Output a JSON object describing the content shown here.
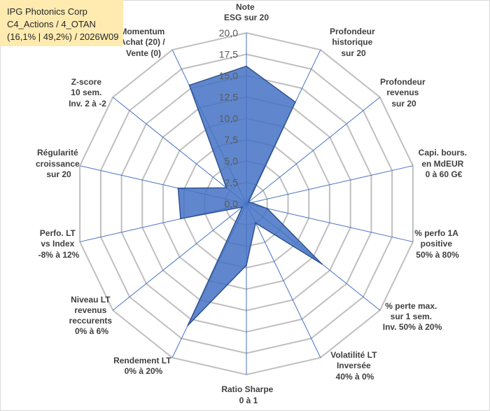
{
  "header": {
    "lines": [
      "IPG Photonics Corp",
      "C4_Actions / 4_OTAN",
      "(16,1% | 49,2%) / 2026W09"
    ]
  },
  "chart_data": {
    "type": "radar",
    "r_range": [
      0,
      20
    ],
    "tick_step": 2.5,
    "tick_labels": [
      "0,0",
      "2,5",
      "5,0",
      "7,5",
      "10,0",
      "12,5",
      "15,0",
      "17,5",
      "20,0"
    ],
    "grid": true,
    "categories": [
      [
        "Note",
        "ESG sur 20"
      ],
      [
        "Profondeur",
        "historique",
        "sur 20"
      ],
      [
        "Profondeur",
        "revenus",
        "sur 20"
      ],
      [
        "Capi. bours.",
        "en MdEUR",
        "0 à 60 G€"
      ],
      [
        "% perfo 1A",
        "positive",
        "50% à 80%"
      ],
      [
        "% perte max.",
        "sur 1 sem.",
        "Inv. 50% à 20%"
      ],
      [
        "Volatilité LT",
        "Inversée",
        "40% à 0%"
      ],
      [
        "Ratio Sharpe",
        "0 à 1"
      ],
      [
        "Rendement LT",
        "0% à 20%"
      ],
      [
        "Niveau LT",
        "revenus",
        "reccurents",
        "0% à 6%"
      ],
      [
        "Perfo. LT",
        "vs Index",
        "-8% à 12%"
      ],
      [
        "Régularité",
        "croissance",
        "sur 20"
      ],
      [
        "Z-score",
        "10 sem.",
        "Inv. 2 à -2"
      ],
      [
        "Momentum",
        "Achat (20) /",
        "Vente (0)"
      ]
    ],
    "values": [
      16.1,
      13.2,
      0.3,
      0.6,
      2.5,
      11.3,
      2.5,
      7.2,
      15.8,
      0.6,
      7.9,
      8.2,
      3.0,
      15.4
    ],
    "colors": {
      "fill": "#4472C4",
      "stroke": "#2F528F",
      "spoke": "#4472C4",
      "grid": "#BFBFBF"
    }
  }
}
